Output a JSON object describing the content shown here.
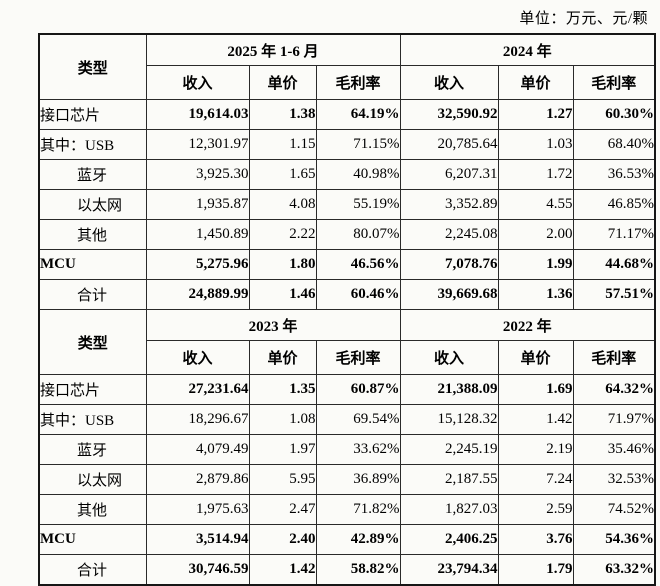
{
  "page": {
    "unit_note": "单位：万元、元/颗"
  },
  "table": {
    "type_header": "类型",
    "sub_headers": [
      "收入",
      "单价",
      "毛利率"
    ],
    "column_names": [
      "revenue",
      "unit-price",
      "gross-margin"
    ],
    "sections": [
      {
        "periods": [
          "2025 年 1-6 月",
          "2024 年"
        ],
        "rows": [
          {
            "label": "接口芯片",
            "indent": false,
            "bold": true,
            "label_bold": false,
            "values": [
              "19,614.03",
              "1.38",
              "64.19%",
              "32,590.92",
              "1.27",
              "60.30%"
            ]
          },
          {
            "label": "其中：USB",
            "indent": false,
            "bold": false,
            "label_bold": false,
            "values": [
              "12,301.97",
              "1.15",
              "71.15%",
              "20,785.64",
              "1.03",
              "68.40%"
            ]
          },
          {
            "label": "蓝牙",
            "indent": true,
            "bold": false,
            "label_bold": false,
            "values": [
              "3,925.30",
              "1.65",
              "40.98%",
              "6,207.31",
              "1.72",
              "36.53%"
            ]
          },
          {
            "label": "以太网",
            "indent": true,
            "bold": false,
            "label_bold": false,
            "values": [
              "1,935.87",
              "4.08",
              "55.19%",
              "3,352.89",
              "4.55",
              "46.85%"
            ]
          },
          {
            "label": "其他",
            "indent": true,
            "bold": false,
            "label_bold": false,
            "values": [
              "1,450.89",
              "2.22",
              "80.07%",
              "2,245.08",
              "2.00",
              "71.17%"
            ]
          },
          {
            "label": "MCU",
            "indent": false,
            "bold": true,
            "label_bold": true,
            "values": [
              "5,275.96",
              "1.80",
              "46.56%",
              "7,078.76",
              "1.99",
              "44.68%"
            ]
          },
          {
            "label": "合计",
            "indent": true,
            "bold": true,
            "label_bold": false,
            "values": [
              "24,889.99",
              "1.46",
              "60.46%",
              "39,669.68",
              "1.36",
              "57.51%"
            ]
          }
        ]
      },
      {
        "periods": [
          "2023 年",
          "2022 年"
        ],
        "rows": [
          {
            "label": "接口芯片",
            "indent": false,
            "bold": true,
            "label_bold": false,
            "values": [
              "27,231.64",
              "1.35",
              "60.87%",
              "21,388.09",
              "1.69",
              "64.32%"
            ]
          },
          {
            "label": "其中：USB",
            "indent": false,
            "bold": false,
            "label_bold": false,
            "values": [
              "18,296.67",
              "1.08",
              "69.54%",
              "15,128.32",
              "1.42",
              "71.97%"
            ]
          },
          {
            "label": "蓝牙",
            "indent": true,
            "bold": false,
            "label_bold": false,
            "values": [
              "4,079.49",
              "1.97",
              "33.62%",
              "2,245.19",
              "2.19",
              "35.46%"
            ]
          },
          {
            "label": "以太网",
            "indent": true,
            "bold": false,
            "label_bold": false,
            "values": [
              "2,879.86",
              "5.95",
              "36.89%",
              "2,187.55",
              "7.24",
              "32.53%"
            ]
          },
          {
            "label": "其他",
            "indent": true,
            "bold": false,
            "label_bold": false,
            "values": [
              "1,975.63",
              "2.47",
              "71.82%",
              "1,827.03",
              "2.59",
              "74.52%"
            ]
          },
          {
            "label": "MCU",
            "indent": false,
            "bold": true,
            "label_bold": true,
            "values": [
              "3,514.94",
              "2.40",
              "42.89%",
              "2,406.25",
              "3.76",
              "54.36%"
            ]
          },
          {
            "label": "合计",
            "indent": true,
            "bold": true,
            "label_bold": false,
            "values": [
              "30,746.59",
              "1.42",
              "58.82%",
              "23,794.34",
              "1.79",
              "63.32%"
            ]
          }
        ]
      }
    ]
  },
  "colors": {
    "border": "#161616",
    "text": "#000000",
    "background": "#fbfbf8"
  }
}
